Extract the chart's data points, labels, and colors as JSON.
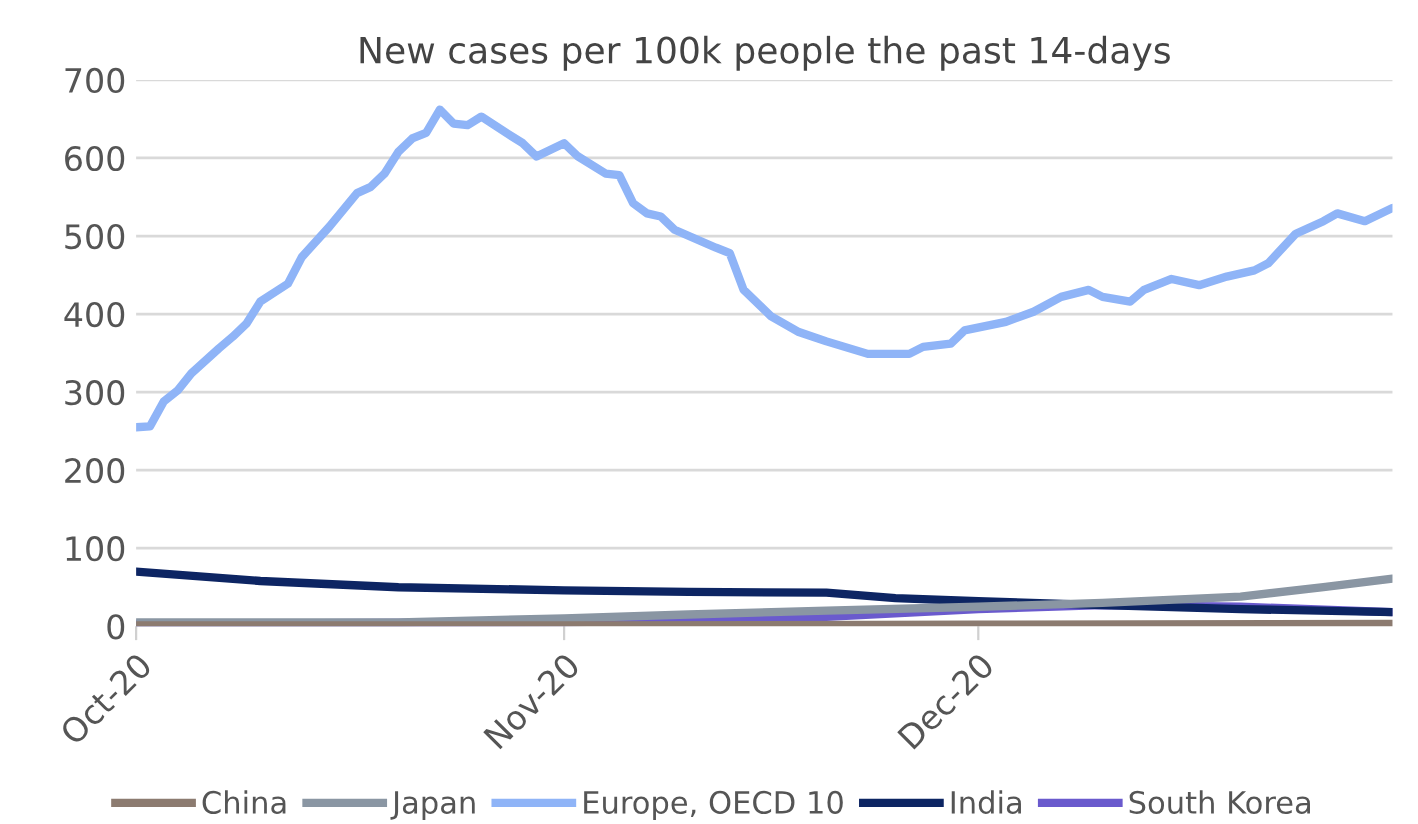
{
  "chart_data": {
    "type": "line",
    "title": "New cases per 100k people the past 14-days",
    "xlim": [
      "2020-10-01",
      "2020-12-31"
    ],
    "xticks": [
      {
        "value": "2020-10-01",
        "label": "Oct-20"
      },
      {
        "value": "2020-11-01",
        "label": "Nov-20"
      },
      {
        "value": "2020-12-01",
        "label": "Dec-20"
      }
    ],
    "ylim": [
      0,
      700
    ],
    "yticks": [
      0,
      100,
      200,
      300,
      400,
      500,
      600,
      700
    ],
    "grid": "y",
    "legend": "bottom",
    "marker": "none",
    "line_style": "solid",
    "series": [
      {
        "name": "China",
        "color": "#8c7b70",
        "x": [
          "2020-10-01",
          "2020-11-01",
          "2020-12-01",
          "2020-12-31"
        ],
        "values": [
          1,
          1,
          2,
          3
        ]
      },
      {
        "name": "Japan",
        "color": "#8a96a3",
        "x": [
          "2020-10-01",
          "2020-10-20",
          "2020-11-01",
          "2020-11-10",
          "2020-11-20",
          "2020-12-01",
          "2020-12-10",
          "2020-12-20",
          "2020-12-26",
          "2020-12-31"
        ],
        "values": [
          5,
          5,
          10,
          15,
          20,
          25,
          30,
          38,
          50,
          61
        ]
      },
      {
        "name": "Europe, OECD 10",
        "color": "#8fb4f7",
        "x": [
          "2020-10-01",
          "2020-10-02",
          "2020-10-03",
          "2020-10-04",
          "2020-10-05",
          "2020-10-07",
          "2020-10-08",
          "2020-10-09",
          "2020-10-10",
          "2020-10-12",
          "2020-10-13",
          "2020-10-15",
          "2020-10-17",
          "2020-10-18",
          "2020-10-19",
          "2020-10-20",
          "2020-10-21",
          "2020-10-22",
          "2020-10-23",
          "2020-10-24",
          "2020-10-25",
          "2020-10-26",
          "2020-10-28",
          "2020-10-29",
          "2020-10-30",
          "2020-11-01",
          "2020-11-02",
          "2020-11-04",
          "2020-11-05",
          "2020-11-06",
          "2020-11-07",
          "2020-11-08",
          "2020-11-09",
          "2020-11-12",
          "2020-11-13",
          "2020-11-14",
          "2020-11-16",
          "2020-11-18",
          "2020-11-20",
          "2020-11-23",
          "2020-11-26",
          "2020-11-27",
          "2020-11-29",
          "2020-11-30",
          "2020-12-03",
          "2020-12-05",
          "2020-12-07",
          "2020-12-09",
          "2020-12-10",
          "2020-12-12",
          "2020-12-13",
          "2020-12-15",
          "2020-12-17",
          "2020-12-19",
          "2020-12-21",
          "2020-12-22",
          "2020-12-24",
          "2020-12-26",
          "2020-12-27",
          "2020-12-29",
          "2020-12-31"
        ],
        "values": [
          255,
          256,
          288,
          302,
          324,
          356,
          371,
          388,
          416,
          439,
          473,
          512,
          555,
          563,
          580,
          608,
          625,
          632,
          662,
          644,
          642,
          653,
          630,
          619,
          602,
          619,
          602,
          580,
          578,
          542,
          529,
          525,
          508,
          485,
          478,
          431,
          397,
          377,
          365,
          349,
          349,
          358,
          362,
          379,
          390,
          403,
          422,
          431,
          422,
          416,
          431,
          445,
          437,
          448,
          456,
          465,
          503,
          519,
          529,
          519,
          536
        ]
      },
      {
        "name": "India",
        "color": "#0d2563",
        "x": [
          "2020-10-01",
          "2020-10-10",
          "2020-10-20",
          "2020-11-01",
          "2020-11-10",
          "2020-11-20",
          "2020-11-25",
          "2020-12-01",
          "2020-12-10",
          "2020-12-20",
          "2020-12-31"
        ],
        "values": [
          70,
          58,
          50,
          46,
          44,
          43,
          36,
          32,
          27,
          22,
          18
        ]
      },
      {
        "name": "South Korea",
        "color": "#6a5acd",
        "x": [
          "2020-10-01",
          "2020-11-01",
          "2020-11-20",
          "2020-12-01",
          "2020-12-10",
          "2020-12-20",
          "2020-12-31"
        ],
        "values": [
          3,
          5,
          12,
          22,
          27,
          25,
          18
        ]
      }
    ]
  }
}
